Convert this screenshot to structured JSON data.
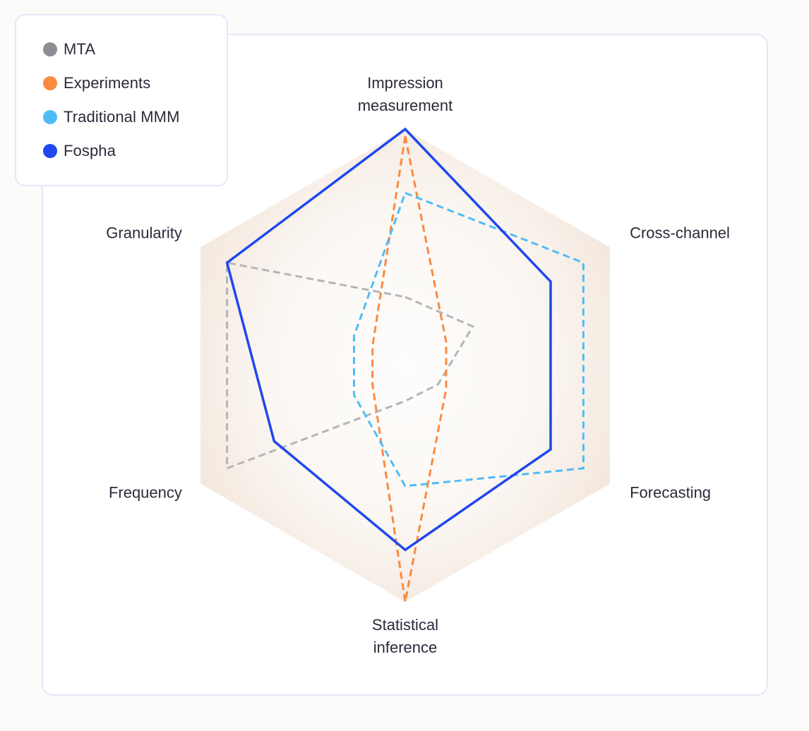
{
  "chart_data": {
    "type": "radar",
    "title": "",
    "axes": [
      {
        "name": "Impression measurement",
        "lines": [
          "Impression",
          "measurement"
        ]
      },
      {
        "name": "Cross-channel",
        "lines": [
          "Cross-channel"
        ]
      },
      {
        "name": "Forecasting",
        "lines": [
          "Forecasting"
        ]
      },
      {
        "name": "Statistical inference",
        "lines": [
          "Statistical",
          "inference"
        ]
      },
      {
        "name": "Frequency",
        "lines": [
          "Frequency"
        ]
      },
      {
        "name": "Granularity",
        "lines": [
          "Granularity"
        ]
      }
    ],
    "range": [
      0,
      10
    ],
    "series": [
      {
        "name": "MTA",
        "color": "#8b8e93",
        "line_color": "#b4b5b9",
        "dashed": true,
        "values": [
          2.9,
          3.3,
          1.6,
          1.5,
          8.7,
          8.7
        ]
      },
      {
        "name": "Experiments",
        "color": "#fb8a40",
        "line_color": "#fb8a40",
        "dashed": true,
        "values": [
          9.7,
          2.0,
          2.0,
          10,
          1.6,
          1.6
        ]
      },
      {
        "name": "Traditional MMM",
        "color": "#4fbcf7",
        "line_color": "#4fbcf7",
        "dashed": true,
        "values": [
          7.3,
          8.7,
          8.7,
          5.1,
          2.5,
          2.5
        ]
      },
      {
        "name": "Fospha",
        "color": "#2047f0",
        "line_color": "#2047f0",
        "dashed": false,
        "values": [
          10,
          7.1,
          7.1,
          7.8,
          6.4,
          8.7
        ]
      }
    ]
  }
}
